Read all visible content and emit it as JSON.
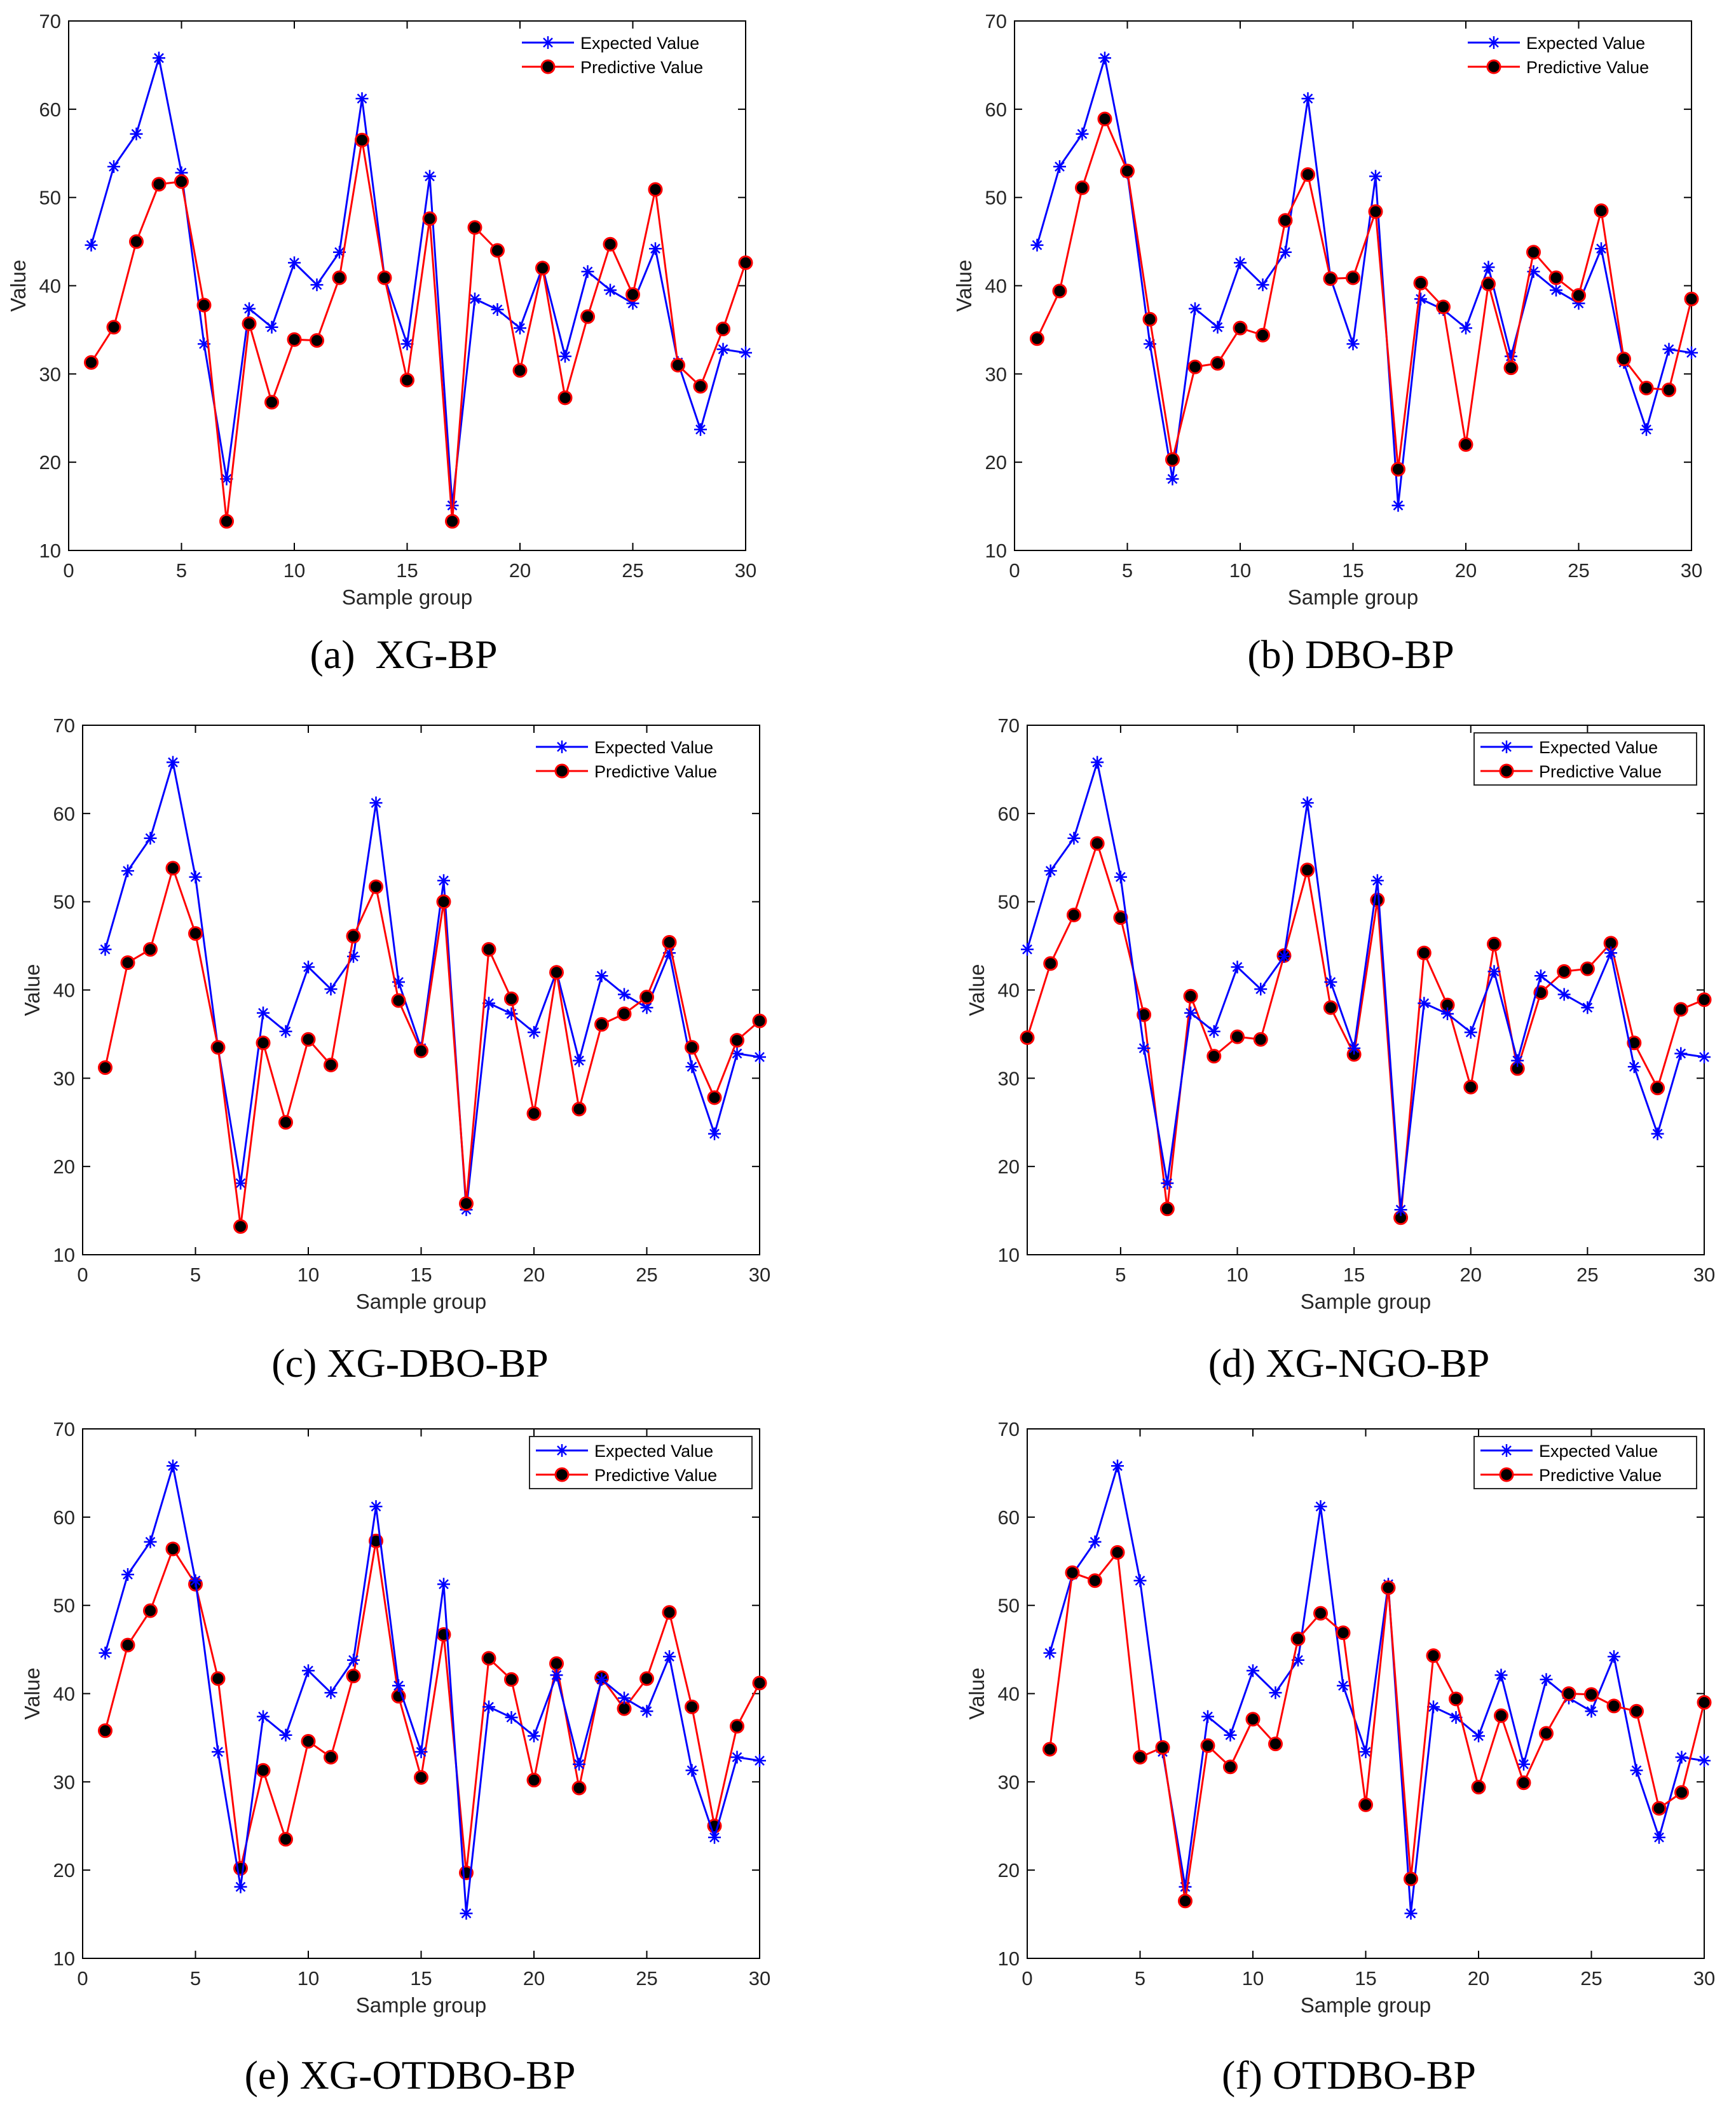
{
  "colors": {
    "expected": "#0000ff",
    "predicted": "#ff0000",
    "marker_fill": "#000000",
    "axes": "#000000"
  },
  "chart_data": [
    {
      "type": "line",
      "caption": "(a)  XG-BP",
      "xlabel": "Sample group",
      "ylabel": "Value",
      "xlim": [
        0,
        30
      ],
      "ylim": [
        10,
        70
      ],
      "xticks": [
        "0",
        "5",
        "10",
        "15",
        "20",
        "25",
        "30"
      ],
      "yticks": [
        "10",
        "20",
        "30",
        "40",
        "50",
        "60",
        "70"
      ],
      "legend_position": "top-right",
      "legend_box": false,
      "x": [
        1,
        2,
        3,
        4,
        5,
        6,
        7,
        8,
        9,
        10,
        11,
        12,
        13,
        14,
        15,
        16,
        17,
        18,
        19,
        20,
        21,
        22,
        23,
        24,
        25,
        26,
        27,
        28,
        29,
        30
      ],
      "series": [
        {
          "name": "Expected Value",
          "values": [
            44.6,
            53.5,
            57.2,
            65.8,
            52.8,
            33.4,
            18.1,
            37.4,
            35.3,
            42.6,
            40.1,
            43.8,
            61.2,
            40.9,
            33.4,
            52.4,
            15.1,
            38.5,
            37.3,
            35.2,
            42.1,
            32.0,
            41.6,
            39.5,
            38.0,
            44.2,
            31.3,
            23.7,
            32.8,
            32.4
          ]
        },
        {
          "name": "Predictive Value",
          "values": [
            31.3,
            35.3,
            45.0,
            51.5,
            51.8,
            37.8,
            13.3,
            35.7,
            26.8,
            33.9,
            33.8,
            40.9,
            56.5,
            40.9,
            29.3,
            47.6,
            13.3,
            46.6,
            44.0,
            30.4,
            42.0,
            27.3,
            36.5,
            44.7,
            39.0,
            50.9,
            31.0,
            28.6,
            35.1,
            42.6
          ]
        }
      ]
    },
    {
      "type": "line",
      "caption": "(b) DBO-BP",
      "xlabel": "Sample group",
      "ylabel": "Value",
      "xlim": [
        0,
        30
      ],
      "ylim": [
        10,
        70
      ],
      "xticks": [
        "0",
        "5",
        "10",
        "15",
        "20",
        "25",
        "30"
      ],
      "yticks": [
        "10",
        "20",
        "30",
        "40",
        "50",
        "60",
        "70"
      ],
      "legend_position": "top-right",
      "legend_box": false,
      "x": [
        1,
        2,
        3,
        4,
        5,
        6,
        7,
        8,
        9,
        10,
        11,
        12,
        13,
        14,
        15,
        16,
        17,
        18,
        19,
        20,
        21,
        22,
        23,
        24,
        25,
        26,
        27,
        28,
        29,
        30
      ],
      "series": [
        {
          "name": "Expected Value",
          "values": [
            44.6,
            53.5,
            57.2,
            65.8,
            52.8,
            33.4,
            18.1,
            37.4,
            35.3,
            42.6,
            40.1,
            43.8,
            61.2,
            40.9,
            33.4,
            52.4,
            15.1,
            38.5,
            37.3,
            35.2,
            42.1,
            32.0,
            41.6,
            39.5,
            38.0,
            44.2,
            31.3,
            23.7,
            32.8,
            32.4
          ]
        },
        {
          "name": "Predictive Value",
          "values": [
            34.0,
            39.4,
            51.1,
            58.9,
            53.0,
            36.2,
            20.3,
            30.8,
            31.2,
            35.2,
            34.4,
            47.4,
            52.6,
            40.8,
            40.9,
            48.4,
            19.2,
            40.3,
            37.6,
            22.0,
            40.2,
            30.7,
            43.8,
            40.9,
            38.9,
            48.5,
            31.7,
            28.4,
            28.2,
            38.5
          ]
        }
      ]
    },
    {
      "type": "line",
      "caption": "(c) XG-DBO-BP",
      "xlabel": "Sample group",
      "ylabel": "Value",
      "xlim": [
        0,
        30
      ],
      "ylim": [
        10,
        70
      ],
      "xticks": [
        "0",
        "5",
        "10",
        "15",
        "20",
        "25",
        "30"
      ],
      "yticks": [
        "10",
        "20",
        "30",
        "40",
        "50",
        "60",
        "70"
      ],
      "legend_position": "top-right",
      "legend_box": false,
      "x": [
        1,
        2,
        3,
        4,
        5,
        6,
        7,
        8,
        9,
        10,
        11,
        12,
        13,
        14,
        15,
        16,
        17,
        18,
        19,
        20,
        21,
        22,
        23,
        24,
        25,
        26,
        27,
        28,
        29,
        30
      ],
      "series": [
        {
          "name": "Expected Value",
          "values": [
            44.6,
            53.5,
            57.2,
            65.8,
            52.8,
            33.4,
            18.1,
            37.4,
            35.3,
            42.6,
            40.1,
            43.8,
            61.2,
            40.9,
            33.4,
            52.4,
            15.1,
            38.5,
            37.3,
            35.2,
            42.1,
            32.0,
            41.6,
            39.5,
            38.0,
            44.2,
            31.3,
            23.7,
            32.8,
            32.4
          ]
        },
        {
          "name": "Predictive Value",
          "values": [
            31.2,
            43.1,
            44.6,
            53.8,
            46.4,
            33.5,
            13.2,
            34.0,
            25.0,
            34.4,
            31.5,
            46.1,
            51.7,
            38.8,
            33.1,
            50.0,
            15.8,
            44.6,
            39.0,
            26.0,
            42.0,
            26.5,
            36.1,
            37.3,
            39.2,
            45.4,
            33.5,
            27.8,
            34.3,
            36.5
          ]
        }
      ]
    },
    {
      "type": "line",
      "caption": "(d) XG-NGO-BP",
      "xlabel": "Sample group",
      "ylabel": "Value",
      "xlim": [
        1,
        30
      ],
      "ylim": [
        10,
        70
      ],
      "xticks": [
        "5",
        "10",
        "15",
        "20",
        "25",
        "30"
      ],
      "yticks": [
        "10",
        "20",
        "30",
        "40",
        "50",
        "60",
        "70"
      ],
      "legend_position": "top-right",
      "legend_box": true,
      "x": [
        1,
        2,
        3,
        4,
        5,
        6,
        7,
        8,
        9,
        10,
        11,
        12,
        13,
        14,
        15,
        16,
        17,
        18,
        19,
        20,
        21,
        22,
        23,
        24,
        25,
        26,
        27,
        28,
        29,
        30
      ],
      "series": [
        {
          "name": "Expected Value",
          "values": [
            44.6,
            53.5,
            57.2,
            65.8,
            52.8,
            33.4,
            18.1,
            37.4,
            35.3,
            42.6,
            40.1,
            43.8,
            61.2,
            40.9,
            33.4,
            52.4,
            15.1,
            38.5,
            37.3,
            35.2,
            42.1,
            32.0,
            41.6,
            39.5,
            38.0,
            44.2,
            31.3,
            23.7,
            32.8,
            32.4
          ]
        },
        {
          "name": "Predictive Value",
          "values": [
            34.6,
            43.0,
            48.5,
            56.6,
            48.2,
            37.2,
            15.2,
            39.3,
            32.5,
            34.7,
            34.4,
            43.9,
            53.6,
            38.0,
            32.7,
            50.2,
            14.2,
            44.2,
            38.3,
            29.0,
            45.2,
            31.1,
            39.7,
            42.1,
            42.4,
            45.3,
            34.0,
            28.9,
            37.8,
            38.9
          ]
        }
      ]
    },
    {
      "type": "line",
      "caption": "(e) XG-OTDBO-BP",
      "xlabel": "Sample group",
      "ylabel": "Value",
      "xlim": [
        0,
        30
      ],
      "ylim": [
        10,
        70
      ],
      "xticks": [
        "0",
        "5",
        "10",
        "15",
        "20",
        "25",
        "30"
      ],
      "yticks": [
        "10",
        "20",
        "30",
        "40",
        "50",
        "60",
        "70"
      ],
      "legend_position": "top-right",
      "legend_box": true,
      "x": [
        1,
        2,
        3,
        4,
        5,
        6,
        7,
        8,
        9,
        10,
        11,
        12,
        13,
        14,
        15,
        16,
        17,
        18,
        19,
        20,
        21,
        22,
        23,
        24,
        25,
        26,
        27,
        28,
        29,
        30
      ],
      "series": [
        {
          "name": "Expected Value",
          "values": [
            44.6,
            53.5,
            57.2,
            65.8,
            52.8,
            33.4,
            18.1,
            37.4,
            35.3,
            42.6,
            40.1,
            43.8,
            61.2,
            40.9,
            33.4,
            52.4,
            15.1,
            38.5,
            37.3,
            35.2,
            42.1,
            32.0,
            41.6,
            39.5,
            38.0,
            44.2,
            31.3,
            23.7,
            32.8,
            32.4
          ]
        },
        {
          "name": "Predictive Value",
          "values": [
            35.8,
            45.5,
            49.4,
            56.4,
            52.4,
            41.7,
            20.2,
            31.3,
            23.5,
            34.6,
            32.8,
            42.0,
            57.3,
            39.7,
            30.5,
            46.7,
            19.7,
            44.0,
            41.6,
            30.2,
            43.4,
            29.3,
            41.8,
            38.3,
            41.7,
            49.2,
            38.5,
            25.0,
            36.3,
            41.2
          ]
        }
      ]
    },
    {
      "type": "line",
      "caption": "(f) OTDBO-BP",
      "xlabel": "Sample group",
      "ylabel": "Value",
      "xlim": [
        0,
        30
      ],
      "ylim": [
        10,
        70
      ],
      "xticks": [
        "0",
        "5",
        "10",
        "15",
        "20",
        "25",
        "30"
      ],
      "yticks": [
        "10",
        "20",
        "30",
        "40",
        "50",
        "60",
        "70"
      ],
      "legend_position": "top-right",
      "legend_box": true,
      "x": [
        1,
        2,
        3,
        4,
        5,
        6,
        7,
        8,
        9,
        10,
        11,
        12,
        13,
        14,
        15,
        16,
        17,
        18,
        19,
        20,
        21,
        22,
        23,
        24,
        25,
        26,
        27,
        28,
        29,
        30
      ],
      "series": [
        {
          "name": "Expected Value",
          "values": [
            44.6,
            53.5,
            57.2,
            65.8,
            52.8,
            33.4,
            18.1,
            37.4,
            35.3,
            42.6,
            40.1,
            43.8,
            61.2,
            40.9,
            33.4,
            52.4,
            15.1,
            38.5,
            37.3,
            35.2,
            42.1,
            32.0,
            41.6,
            39.5,
            38.0,
            44.2,
            31.3,
            23.7,
            32.8,
            32.4
          ]
        },
        {
          "name": "Predictive Value",
          "values": [
            33.7,
            53.7,
            52.8,
            56.0,
            32.8,
            33.9,
            16.5,
            34.1,
            31.7,
            37.1,
            34.3,
            46.2,
            49.1,
            46.9,
            27.4,
            52.0,
            19.0,
            44.3,
            39.4,
            29.4,
            37.5,
            29.9,
            35.5,
            40.0,
            39.9,
            38.6,
            38.0,
            27.0,
            28.8,
            39.0
          ]
        }
      ]
    }
  ]
}
